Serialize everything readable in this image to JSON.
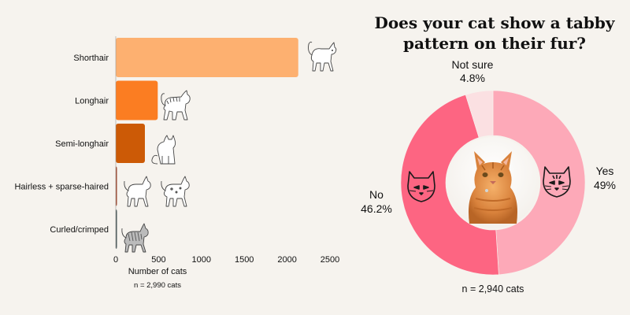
{
  "chart_data": [
    {
      "type": "bar",
      "orientation": "horizontal",
      "categories": [
        "Shorthair",
        "Longhair",
        "Semi-longhair",
        "Hairless + sparse-haired",
        "Curled/crimped"
      ],
      "values": [
        2130,
        490,
        340,
        10,
        5
      ],
      "colors": [
        "#fdb070",
        "#fb7d22",
        "#cc5a06",
        "#9b3d22",
        "#3b4a4c"
      ],
      "xlabel": "Number of cats",
      "xlim": [
        0,
        2500
      ],
      "xticks": [
        0,
        500,
        1000,
        1500,
        2000,
        2500
      ],
      "note": "n = 2,990 cats",
      "grid": false,
      "icons": [
        "standing-cat-icon",
        "longhair-cat-icon",
        "sitting-cat-icon",
        "hairless-cat-icon",
        "curly-cat-icon"
      ]
    },
    {
      "type": "pie",
      "donut": true,
      "title_lines": [
        "Does your cat show a tabby",
        "pattern on their fur?"
      ],
      "slices": [
        {
          "label": "Yes",
          "value": 49,
          "display": "49%",
          "color": "#fda9b8"
        },
        {
          "label": "No",
          "value": 46.2,
          "display": "46.2%",
          "color": "#fd6582"
        },
        {
          "label": "Not sure",
          "value": 4.8,
          "display": "4.8%",
          "color": "#fbe0e2"
        }
      ],
      "note": "n = 2,940 cats",
      "center_image": "orange-tabby-cat-photo",
      "slice_icons": [
        "tabby-cat-face-icon",
        "plain-cat-face-icon"
      ]
    }
  ]
}
